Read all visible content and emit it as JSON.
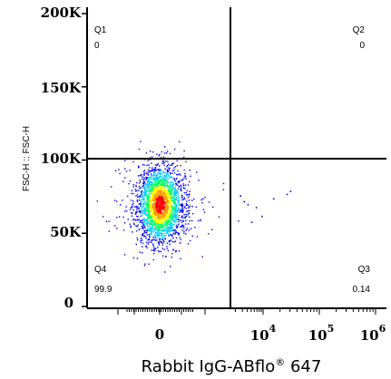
{
  "chart_data": {
    "type": "scatter",
    "xlabel_main": "Rabbit IgG-ABflo",
    "xlabel_reg": "®",
    "xlabel_tail": " 647",
    "ylabel": "FSC-H :: FSC-H",
    "y_ticks": [
      "200K",
      "150K",
      "100K",
      "50K",
      "0"
    ],
    "y_tick_values": [
      200000,
      150000,
      100000,
      50000,
      0
    ],
    "ylim": [
      0,
      200000
    ],
    "x_ticks": [
      {
        "base": "0",
        "exp": ""
      },
      {
        "base": "10",
        "exp": "4"
      },
      {
        "base": "10",
        "exp": "5"
      },
      {
        "base": "10",
        "exp": "6"
      }
    ],
    "x_scale": "biexponential",
    "gates": {
      "x": 1500,
      "y": 100000
    },
    "quadrants": [
      {
        "name": "Q1",
        "value": "0",
        "position": "top-left"
      },
      {
        "name": "Q2",
        "value": "0",
        "position": "top-right"
      },
      {
        "name": "Q3",
        "value": "0.14",
        "position": "bottom-right"
      },
      {
        "name": "Q4",
        "value": "99.9",
        "position": "bottom-left"
      }
    ],
    "population": {
      "center_x": 0,
      "center_y": 70000,
      "spread_x": 200,
      "spread_y": 13000,
      "density": "high",
      "colors": [
        "#ff0000",
        "#ff9900",
        "#ffff00",
        "#00ff66",
        "#00ccff",
        "#0000ff"
      ]
    },
    "outliers": [
      {
        "x": 2600,
        "y": 76000
      },
      {
        "x": 3200,
        "y": 72000
      },
      {
        "x": 4000,
        "y": 70000
      },
      {
        "x": 6500,
        "y": 68000
      },
      {
        "x": 9000,
        "y": 62000
      },
      {
        "x": 15000,
        "y": 74000
      },
      {
        "x": 26000,
        "y": 77000
      },
      {
        "x": 30000,
        "y": 79000
      },
      {
        "x": 5000,
        "y": 58000
      }
    ]
  }
}
